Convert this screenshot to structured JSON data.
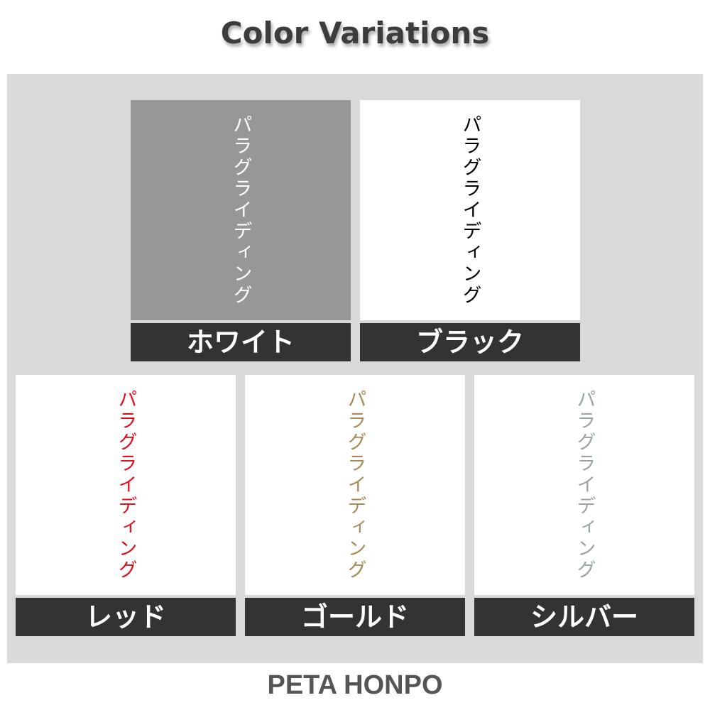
{
  "title": "Color Variations",
  "brand": "PETA HONPO",
  "variations": [
    {
      "label": "ホワイト",
      "text": "パラグライディング",
      "text_color": "#ffffff",
      "background": "#979797"
    },
    {
      "label": "ブラック",
      "text": "パラグライディング",
      "text_color": "#000000",
      "background": "#ffffff"
    },
    {
      "label": "レッド",
      "text": "パラグライディング",
      "text_color": "#e0101c",
      "background": "#ffffff"
    },
    {
      "label": "ゴールド",
      "text": "パラグライディング",
      "text_color": "#a88c58",
      "background": "#ffffff"
    },
    {
      "label": "シルバー",
      "text": "パラグライディング",
      "text_color": "#9aa4a4",
      "background": "#ffffff"
    }
  ]
}
